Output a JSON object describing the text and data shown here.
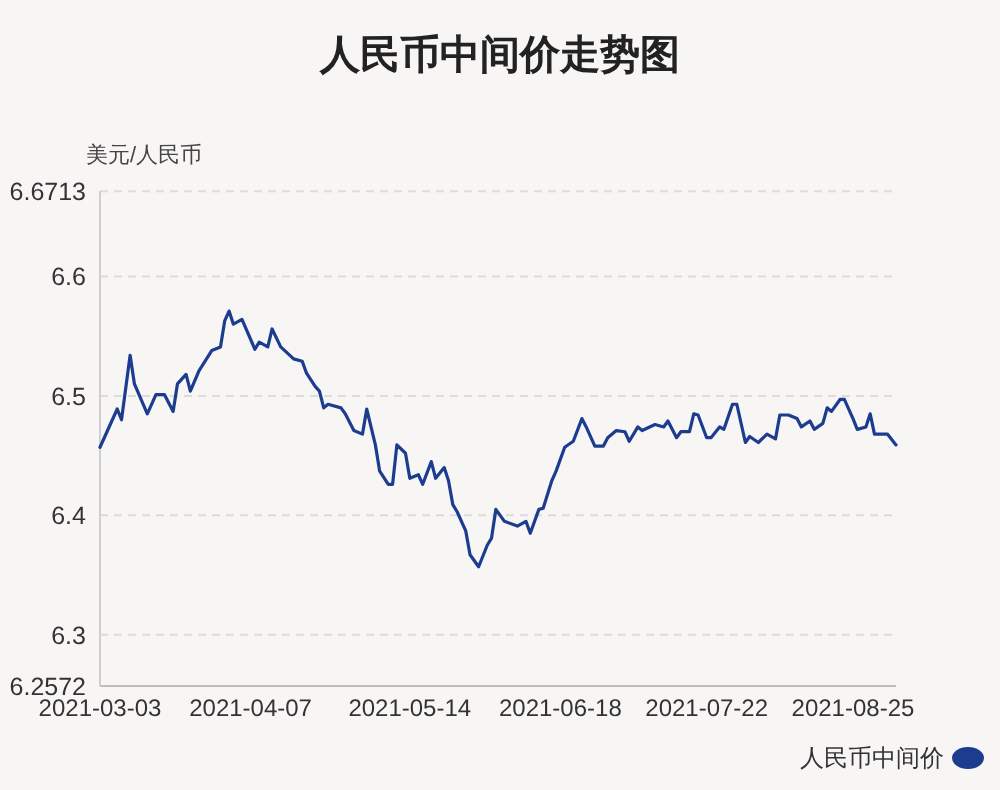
{
  "chart_data": {
    "type": "line",
    "title": "人民币中间价走势图",
    "ylabel": "美元/人民币",
    "xlim": [
      "2021-03-03",
      "2021-09-04"
    ],
    "xticks": [
      "2021-03-03",
      "2021-04-07",
      "2021-05-14",
      "2021-06-18",
      "2021-07-22",
      "2021-08-25"
    ],
    "ylim": [
      6.2572,
      6.6713
    ],
    "yticks": [
      6.2572,
      6.3,
      6.4,
      6.5,
      6.6,
      6.6713
    ],
    "grid": "y",
    "legend": "bottom right",
    "marker": "none",
    "line_style": "solid",
    "x": [
      "2021-03-03",
      "2021-03-07",
      "2021-03-08",
      "2021-03-10",
      "2021-03-11",
      "2021-03-14",
      "2021-03-16",
      "2021-03-18",
      "2021-03-20",
      "2021-03-21",
      "2021-03-23",
      "2021-03-24",
      "2021-03-26",
      "2021-03-29",
      "2021-03-31",
      "2021-04-01",
      "2021-04-02",
      "2021-04-03",
      "2021-04-05",
      "2021-04-08",
      "2021-04-09",
      "2021-04-11",
      "2021-04-12",
      "2021-04-14",
      "2021-04-17",
      "2021-04-19",
      "2021-04-20",
      "2021-04-22",
      "2021-04-23",
      "2021-04-24",
      "2021-04-25",
      "2021-04-28",
      "2021-04-29",
      "2021-05-01",
      "2021-05-03",
      "2021-05-04",
      "2021-05-06",
      "2021-05-07",
      "2021-05-09",
      "2021-05-10",
      "2021-05-11",
      "2021-05-13",
      "2021-05-14",
      "2021-05-16",
      "2021-05-17",
      "2021-05-19",
      "2021-05-20",
      "2021-05-22",
      "2021-05-23",
      "2021-05-24",
      "2021-05-25",
      "2021-05-27",
      "2021-05-28",
      "2021-05-30",
      "2021-06-01",
      "2021-06-02",
      "2021-06-03",
      "2021-06-05",
      "2021-06-08",
      "2021-06-10",
      "2021-06-11",
      "2021-06-13",
      "2021-06-14",
      "2021-06-16",
      "2021-06-17",
      "2021-06-19",
      "2021-06-21",
      "2021-06-23",
      "2021-06-24",
      "2021-06-26",
      "2021-06-28",
      "2021-06-29",
      "2021-07-01",
      "2021-07-03",
      "2021-07-04",
      "2021-07-06",
      "2021-07-07",
      "2021-07-10",
      "2021-07-12",
      "2021-07-13",
      "2021-07-15",
      "2021-07-16",
      "2021-07-18",
      "2021-07-19",
      "2021-07-20",
      "2021-07-22",
      "2021-07-23",
      "2021-07-25",
      "2021-07-26",
      "2021-07-28",
      "2021-07-29",
      "2021-07-31",
      "2021-08-01",
      "2021-08-03",
      "2021-08-05",
      "2021-08-07",
      "2021-08-08",
      "2021-08-10",
      "2021-08-12",
      "2021-08-13",
      "2021-08-15",
      "2021-08-16",
      "2021-08-18",
      "2021-08-19",
      "2021-08-20",
      "2021-08-22",
      "2021-08-23",
      "2021-08-25",
      "2021-08-26",
      "2021-08-28",
      "2021-08-29",
      "2021-08-30",
      "2021-09-02",
      "2021-09-04"
    ],
    "series": [
      {
        "name": "人民币中间价",
        "color": "#1c3d8f",
        "values": [
          6.457,
          6.489,
          6.48,
          6.534,
          6.51,
          6.485,
          6.501,
          6.501,
          6.487,
          6.51,
          6.518,
          6.504,
          6.521,
          6.538,
          6.541,
          6.563,
          6.571,
          6.56,
          6.564,
          6.539,
          6.545,
          6.541,
          6.556,
          6.541,
          6.531,
          6.529,
          6.519,
          6.508,
          6.504,
          6.49,
          6.493,
          6.49,
          6.485,
          6.471,
          6.468,
          6.489,
          6.459,
          6.437,
          6.426,
          6.426,
          6.459,
          6.452,
          6.431,
          6.434,
          6.426,
          6.445,
          6.431,
          6.44,
          6.429,
          6.409,
          6.403,
          6.387,
          6.367,
          6.357,
          6.375,
          6.381,
          6.405,
          6.395,
          6.391,
          6.395,
          6.385,
          6.405,
          6.406,
          6.429,
          6.437,
          6.457,
          6.462,
          6.481,
          6.474,
          6.458,
          6.458,
          6.465,
          6.471,
          6.47,
          6.462,
          6.474,
          6.471,
          6.476,
          6.474,
          6.479,
          6.465,
          6.47,
          6.47,
          6.485,
          6.484,
          6.465,
          6.465,
          6.474,
          6.472,
          6.493,
          6.493,
          6.461,
          6.466,
          6.461,
          6.468,
          6.464,
          6.484,
          6.484,
          6.481,
          6.474,
          6.479,
          6.472,
          6.477,
          6.49,
          6.487,
          6.497,
          6.497,
          6.481,
          6.472,
          6.474,
          6.485,
          6.468,
          6.468,
          6.459
        ]
      }
    ]
  }
}
